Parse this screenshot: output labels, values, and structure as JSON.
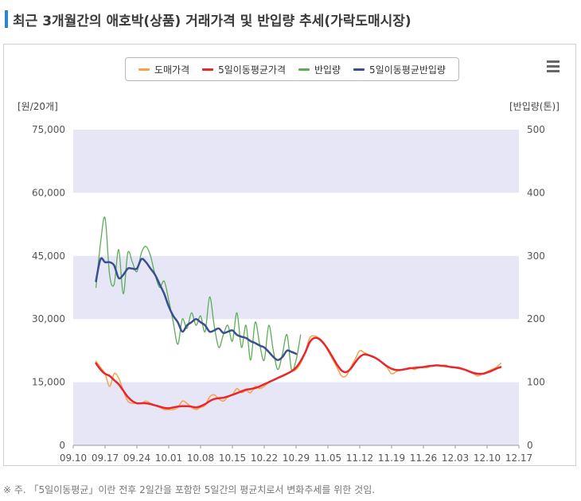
{
  "title": "최근 3개월간의 애호박(상품) 거래가격 및 반입량 추세(가락도매시장)",
  "footnote": "※ 주. 「5일이동평균」이란 전후 2일간을 포함한 5일간의 평균치로서 변화추세를 위한 것임.",
  "menu_icon": "hamburger-menu-icon",
  "colors": {
    "price": "#f7a24a",
    "price_ma": "#e8262b",
    "volume": "#5cad55",
    "volume_ma": "#3a4f8f",
    "band": "#e6e6f7",
    "title_mark": "#2a86c9"
  },
  "chart_data": {
    "type": "line",
    "title": "최근 3개월간의 애호박(상품) 거래가격 및 반입량 추세(가락도매시장)",
    "legend_placement": "top-center",
    "left_axis": {
      "label": "[원/20개]",
      "ticks": [
        "0",
        "15,000",
        "30,000",
        "45,000",
        "60,000",
        "75,000"
      ],
      "ylim": [
        0,
        75000
      ]
    },
    "right_axis": {
      "label": "[반입량(톤)]",
      "ticks": [
        "0",
        "100",
        "200",
        "300",
        "400",
        "500"
      ],
      "ylim": [
        0,
        500
      ]
    },
    "x_ticks": [
      "09.10",
      "09.17",
      "09.24",
      "10.01",
      "10.08",
      "10.15",
      "10.22",
      "10.29",
      "11.05",
      "11.12",
      "11.19",
      "11.26",
      "12.03",
      "12.10",
      "12.17"
    ],
    "x_range": [
      "09.10",
      "12.17"
    ],
    "series": [
      {
        "name": "도매가격",
        "axis": "left",
        "points": [
          [
            "09.15",
            20000
          ],
          [
            "09.16",
            18500
          ],
          [
            "09.17",
            17000
          ],
          [
            "09.18",
            14000
          ],
          [
            "09.19",
            17000
          ],
          [
            "09.20",
            16000
          ],
          [
            "09.21",
            13000
          ],
          [
            "09.22",
            10500
          ],
          [
            "09.23",
            10000
          ],
          [
            "09.24",
            10000
          ],
          [
            "09.25",
            10000
          ],
          [
            "09.26",
            10500
          ],
          [
            "09.27",
            10000
          ],
          [
            "09.28",
            9500
          ],
          [
            "09.29",
            9000
          ],
          [
            "09.30",
            8500
          ],
          [
            "10.01",
            8500
          ],
          [
            "10.02",
            8500
          ],
          [
            "10.03",
            9000
          ],
          [
            "10.04",
            10500
          ],
          [
            "10.05",
            10000
          ],
          [
            "10.06",
            9000
          ],
          [
            "10.07",
            8500
          ],
          [
            "10.08",
            9000
          ],
          [
            "10.09",
            9500
          ],
          [
            "10.10",
            11500
          ],
          [
            "10.11",
            12000
          ],
          [
            "10.12",
            11000
          ],
          [
            "10.13",
            10500
          ],
          [
            "10.14",
            11500
          ],
          [
            "10.15",
            12000
          ],
          [
            "10.16",
            13500
          ],
          [
            "10.17",
            12500
          ],
          [
            "10.18",
            13000
          ],
          [
            "10.19",
            12500
          ],
          [
            "10.20",
            14000
          ],
          [
            "10.21",
            13500
          ],
          [
            "10.22",
            14000
          ],
          [
            "10.23",
            15000
          ],
          [
            "10.24",
            15500
          ],
          [
            "10.25",
            16000
          ],
          [
            "10.26",
            16500
          ],
          [
            "10.27",
            17000
          ],
          [
            "10.28",
            17500
          ],
          [
            "10.29",
            18000
          ],
          [
            "10.30",
            19500
          ],
          [
            "10.31",
            22000
          ],
          [
            "11.01",
            25500
          ],
          [
            "11.02",
            26000
          ],
          [
            "11.03",
            25500
          ],
          [
            "11.04",
            24500
          ],
          [
            "11.05",
            22500
          ],
          [
            "11.06",
            20500
          ],
          [
            "11.07",
            18500
          ],
          [
            "11.08",
            16500
          ],
          [
            "11.09",
            16500
          ],
          [
            "11.10",
            18500
          ],
          [
            "11.11",
            20500
          ],
          [
            "11.12",
            22500
          ],
          [
            "11.13",
            22000
          ],
          [
            "11.14",
            21500
          ],
          [
            "11.15",
            21000
          ],
          [
            "11.16",
            20500
          ],
          [
            "11.17",
            19500
          ],
          [
            "11.18",
            18500
          ],
          [
            "11.19",
            17000
          ],
          [
            "11.20",
            17500
          ],
          [
            "11.21",
            18000
          ],
          [
            "11.22",
            18000
          ],
          [
            "11.23",
            18500
          ],
          [
            "11.24",
            18000
          ],
          [
            "11.25",
            18500
          ],
          [
            "11.26",
            18500
          ],
          [
            "11.27",
            18500
          ],
          [
            "11.28",
            19000
          ],
          [
            "11.29",
            19000
          ],
          [
            "11.30",
            19000
          ],
          [
            "12.01",
            19000
          ],
          [
            "12.02",
            18500
          ],
          [
            "12.03",
            18500
          ],
          [
            "12.04",
            18500
          ],
          [
            "12.05",
            18000
          ],
          [
            "12.06",
            17500
          ],
          [
            "12.07",
            17000
          ],
          [
            "12.08",
            16500
          ],
          [
            "12.09",
            17000
          ],
          [
            "12.10",
            17500
          ],
          [
            "12.11",
            18000
          ],
          [
            "12.12",
            18500
          ],
          [
            "12.13",
            19500
          ]
        ]
      },
      {
        "name": "5일이동평균가격",
        "axis": "left",
        "points": [
          [
            "09.15",
            19500
          ],
          [
            "09.16",
            18000
          ],
          [
            "09.17",
            17000
          ],
          [
            "09.18",
            16500
          ],
          [
            "09.19",
            15500
          ],
          [
            "09.20",
            14500
          ],
          [
            "09.21",
            13000
          ],
          [
            "09.22",
            11500
          ],
          [
            "09.23",
            10500
          ],
          [
            "09.24",
            10000
          ],
          [
            "09.25",
            10000
          ],
          [
            "09.26",
            10000
          ],
          [
            "09.27",
            9800
          ],
          [
            "09.28",
            9500
          ],
          [
            "09.29",
            9200
          ],
          [
            "09.30",
            8900
          ],
          [
            "10.01",
            8800
          ],
          [
            "10.02",
            9000
          ],
          [
            "10.03",
            9200
          ],
          [
            "10.04",
            9300
          ],
          [
            "10.05",
            9300
          ],
          [
            "10.06",
            9200
          ],
          [
            "10.07",
            9000
          ],
          [
            "10.08",
            9300
          ],
          [
            "10.09",
            9800
          ],
          [
            "10.10",
            10500
          ],
          [
            "10.11",
            11000
          ],
          [
            "10.12",
            11200
          ],
          [
            "10.13",
            11300
          ],
          [
            "10.14",
            11600
          ],
          [
            "10.15",
            12000
          ],
          [
            "10.16",
            12400
          ],
          [
            "10.17",
            12800
          ],
          [
            "10.18",
            13200
          ],
          [
            "10.19",
            13400
          ],
          [
            "10.20",
            13600
          ],
          [
            "10.21",
            14000
          ],
          [
            "10.22",
            14500
          ],
          [
            "10.23",
            15000
          ],
          [
            "10.24",
            15500
          ],
          [
            "10.25",
            16000
          ],
          [
            "10.26",
            16500
          ],
          [
            "10.27",
            17000
          ],
          [
            "10.28",
            17600
          ],
          [
            "10.29",
            18500
          ],
          [
            "10.30",
            20000
          ],
          [
            "10.31",
            22000
          ],
          [
            "11.01",
            24500
          ],
          [
            "11.02",
            25500
          ],
          [
            "11.03",
            25300
          ],
          [
            "11.04",
            24300
          ],
          [
            "11.05",
            22800
          ],
          [
            "11.06",
            21000
          ],
          [
            "11.07",
            19200
          ],
          [
            "11.08",
            17800
          ],
          [
            "11.09",
            17400
          ],
          [
            "11.10",
            18200
          ],
          [
            "11.11",
            19700
          ],
          [
            "11.12",
            21000
          ],
          [
            "11.13",
            21600
          ],
          [
            "11.14",
            21400
          ],
          [
            "11.15",
            21000
          ],
          [
            "11.16",
            20400
          ],
          [
            "11.17",
            19600
          ],
          [
            "11.18",
            18800
          ],
          [
            "11.19",
            18200
          ],
          [
            "11.20",
            17900
          ],
          [
            "11.21",
            17900
          ],
          [
            "11.22",
            18100
          ],
          [
            "11.23",
            18300
          ],
          [
            "11.24",
            18400
          ],
          [
            "11.25",
            18500
          ],
          [
            "11.26",
            18600
          ],
          [
            "11.27",
            18800
          ],
          [
            "11.28",
            18900
          ],
          [
            "11.29",
            19000
          ],
          [
            "11.30",
            18900
          ],
          [
            "12.01",
            18800
          ],
          [
            "12.02",
            18600
          ],
          [
            "12.03",
            18500
          ],
          [
            "12.04",
            18300
          ],
          [
            "12.05",
            18000
          ],
          [
            "12.06",
            17600
          ],
          [
            "12.07",
            17200
          ],
          [
            "12.08",
            17000
          ],
          [
            "12.09",
            17000
          ],
          [
            "12.10",
            17300
          ],
          [
            "12.11",
            17700
          ],
          [
            "12.12",
            18200
          ],
          [
            "12.13",
            18600
          ]
        ]
      },
      {
        "name": "반입량",
        "axis": "right",
        "points": [
          [
            "09.15",
            250
          ],
          [
            "09.16",
            320
          ],
          [
            "09.17",
            360
          ],
          [
            "09.18",
            270
          ],
          [
            "09.19",
            255
          ],
          [
            "09.20",
            310
          ],
          [
            "09.21",
            240
          ],
          [
            "09.22",
            305
          ],
          [
            "09.23",
            290
          ],
          [
            "09.24",
            275
          ],
          [
            "09.25",
            305
          ],
          [
            "09.26",
            315
          ],
          [
            "09.27",
            300
          ],
          [
            "09.28",
            270
          ],
          [
            "09.29",
            250
          ],
          [
            "09.30",
            260
          ],
          [
            "10.01",
            230
          ],
          [
            "10.02",
            195
          ],
          [
            "10.03",
            160
          ],
          [
            "10.04",
            200
          ],
          [
            "10.05",
            185
          ],
          [
            "10.06",
            210
          ],
          [
            "10.07",
            190
          ],
          [
            "10.08",
            205
          ],
          [
            "10.09",
            180
          ],
          [
            "10.10",
            235
          ],
          [
            "10.11",
            190
          ],
          [
            "10.12",
            155
          ],
          [
            "10.13",
            175
          ],
          [
            "10.14",
            190
          ],
          [
            "10.15",
            165
          ],
          [
            "10.16",
            210
          ],
          [
            "10.17",
            155
          ],
          [
            "10.18",
            190
          ],
          [
            "10.19",
            135
          ],
          [
            "10.20",
            195
          ],
          [
            "10.21",
            160
          ],
          [
            "10.22",
            135
          ],
          [
            "10.23",
            190
          ],
          [
            "10.24",
            150
          ],
          [
            "10.25",
            120
          ],
          [
            "10.26",
            145
          ],
          [
            "10.27",
            175
          ],
          [
            "10.28",
            120
          ],
          [
            "10.29",
            135
          ],
          [
            "10.30",
            175
          ]
        ]
      },
      {
        "name": "5일이동평균반입량",
        "axis": "right",
        "points": [
          [
            "09.15",
            260
          ],
          [
            "09.16",
            295
          ],
          [
            "09.17",
            290
          ],
          [
            "09.18",
            290
          ],
          [
            "09.19",
            285
          ],
          [
            "09.20",
            265
          ],
          [
            "09.21",
            270
          ],
          [
            "09.22",
            280
          ],
          [
            "09.23",
            280
          ],
          [
            "09.24",
            280
          ],
          [
            "09.25",
            295
          ],
          [
            "09.26",
            290
          ],
          [
            "09.27",
            280
          ],
          [
            "09.28",
            270
          ],
          [
            "09.29",
            255
          ],
          [
            "09.30",
            240
          ],
          [
            "10.01",
            220
          ],
          [
            "10.02",
            205
          ],
          [
            "10.03",
            195
          ],
          [
            "10.04",
            180
          ],
          [
            "10.05",
            190
          ],
          [
            "10.06",
            195
          ],
          [
            "10.07",
            200
          ],
          [
            "10.08",
            195
          ],
          [
            "10.09",
            190
          ],
          [
            "10.10",
            180
          ],
          [
            "10.11",
            182
          ],
          [
            "10.12",
            185
          ],
          [
            "10.13",
            178
          ],
          [
            "10.14",
            180
          ],
          [
            "10.15",
            182
          ],
          [
            "10.16",
            175
          ],
          [
            "10.17",
            172
          ],
          [
            "10.18",
            170
          ],
          [
            "10.19",
            165
          ],
          [
            "10.20",
            162
          ],
          [
            "10.21",
            158
          ],
          [
            "10.22",
            155
          ],
          [
            "10.23",
            148
          ],
          [
            "10.24",
            140
          ],
          [
            "10.25",
            135
          ],
          [
            "10.26",
            140
          ],
          [
            "10.27",
            150
          ],
          [
            "10.28",
            148
          ],
          [
            "10.29",
            145
          ]
        ]
      }
    ]
  }
}
